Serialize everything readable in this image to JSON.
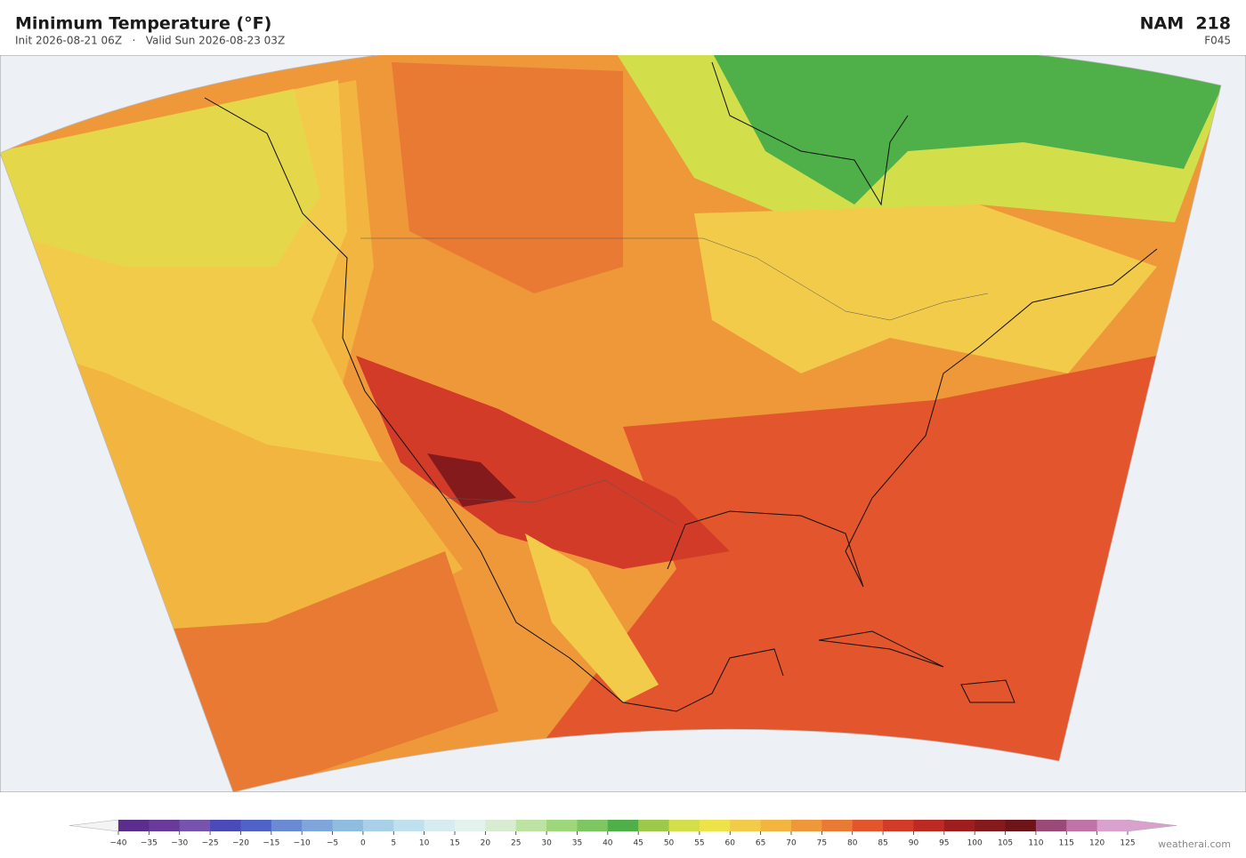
{
  "header": {
    "title": "Minimum Temperature  (°F)",
    "subtitle": "Init 2026-08-21 06Z   ·   Valid Sun 2026-08-23 03Z",
    "model": "NAM  218",
    "forecast_hour": "F045"
  },
  "colorbar": {
    "ticks": [
      {
        "value": -40,
        "label": "−40"
      },
      {
        "value": -35,
        "label": "−35"
      },
      {
        "value": -30,
        "label": "−30"
      },
      {
        "value": -25,
        "label": "−25"
      },
      {
        "value": -20,
        "label": "−20"
      },
      {
        "value": -15,
        "label": "−15"
      },
      {
        "value": -10,
        "label": "−10"
      },
      {
        "value": -5,
        "label": "−5"
      },
      0,
      5,
      10,
      15,
      20,
      25,
      30,
      35,
      40,
      45,
      50,
      55,
      60,
      65,
      70,
      75,
      80,
      85,
      90,
      95,
      100,
      105,
      110,
      115,
      120,
      125
    ],
    "colors": [
      "#5b2d8c",
      "#6a3a9a",
      "#7654ae",
      "#4a4bb8",
      "#4f62c8",
      "#6a8ad4",
      "#7ea6da",
      "#8fbde0",
      "#a9d0e8",
      "#c0e0ee",
      "#d6ecf1",
      "#e4f2ee",
      "#d7ecd0",
      "#bde3a2",
      "#9ed67c",
      "#7dc662",
      "#4fb04a",
      "#9dc94a",
      "#d2df4a",
      "#ede24a",
      "#f3cb4a",
      "#f2b540",
      "#ee983a",
      "#e97a34",
      "#e2552d",
      "#d13b28",
      "#bc2a24",
      "#9e1e20",
      "#851a1c",
      "#6e1418",
      "#9b4a78",
      "#bf73a8",
      "#d8a2cc"
    ],
    "under_color": "#f4f4f4",
    "over_color": "#d8a2cc"
  },
  "footer": {
    "watermark": "weatherai.com"
  }
}
